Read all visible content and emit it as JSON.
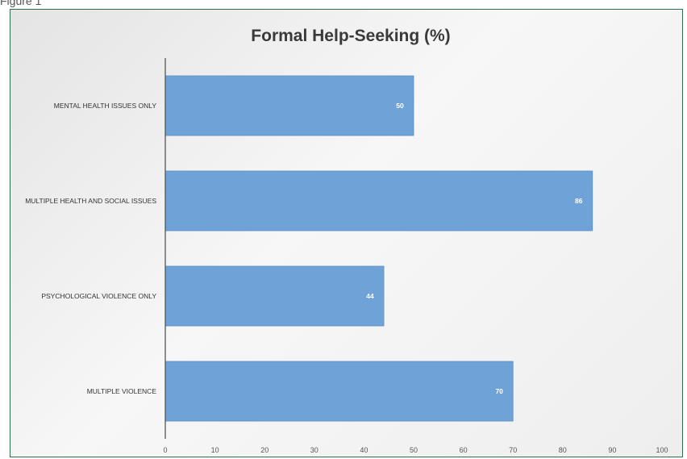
{
  "figure_label": "Figure 1",
  "chart_data": {
    "type": "bar",
    "orientation": "horizontal",
    "title": "Formal Help-Seeking (%)",
    "categories": [
      "MENTAL HEALTH ISSUES ONLY",
      "MULTIPLE HEALTH AND SOCIAL ISSUES",
      "PSYCHOLOGICAL VIOLENCE ONLY",
      "MULTIPLE VIOLENCE"
    ],
    "values": [
      50,
      86,
      44,
      70
    ],
    "data_labels": [
      "50",
      "86",
      "44",
      "70"
    ],
    "xlim": [
      0,
      100
    ],
    "x_ticks": [
      0,
      10,
      20,
      30,
      40,
      50,
      60,
      70,
      80,
      90,
      100
    ],
    "x_tick_labels": [
      "0",
      "10",
      "20",
      "30",
      "40",
      "50",
      "60",
      "70",
      "80",
      "90",
      "100"
    ],
    "grid": false,
    "legend": "none",
    "bar_color": "#6fa3d8"
  }
}
